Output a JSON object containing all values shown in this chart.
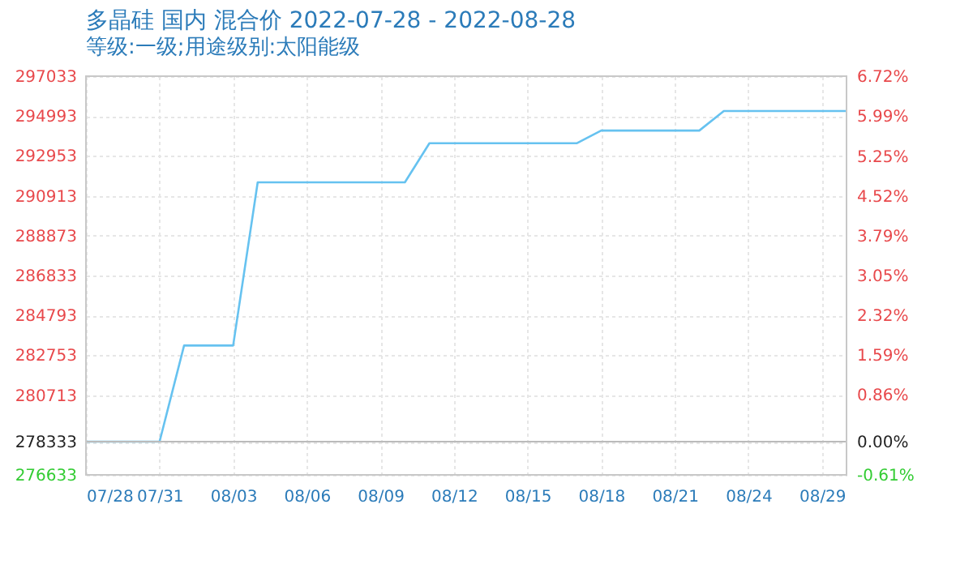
{
  "chart_data": {
    "type": "line",
    "title": "多晶硅 国内 混合价 2022-07-28 - 2022-08-28",
    "subtitle": "等级:一级;用途级别:太阳能级",
    "x": [
      "2022-07-28",
      "2022-07-31",
      "2022-08-01",
      "2022-08-03",
      "2022-08-04",
      "2022-08-10",
      "2022-08-11",
      "2022-08-17",
      "2022-08-18",
      "2022-08-22",
      "2022-08-23",
      "2022-08-28"
    ],
    "series": [
      {
        "color": "#66c2f0",
        "values": [
          278333,
          278333,
          283250,
          283250,
          291600,
          291600,
          293600,
          293600,
          294250,
          294250,
          295250,
          295250
        ]
      }
    ],
    "xlim": [
      "2022-07-28",
      "2022-08-28"
    ],
    "xticks": [
      {
        "value": "2022-07-28",
        "label": "07/28"
      },
      {
        "value": "2022-07-31",
        "label": "07/31"
      },
      {
        "value": "2022-08-03",
        "label": "08/03"
      },
      {
        "value": "2022-08-06",
        "label": "08/06"
      },
      {
        "value": "2022-08-09",
        "label": "08/09"
      },
      {
        "value": "2022-08-12",
        "label": "08/12"
      },
      {
        "value": "2022-08-15",
        "label": "08/15"
      },
      {
        "value": "2022-08-18",
        "label": "08/18"
      },
      {
        "value": "2022-08-21",
        "label": "08/21"
      },
      {
        "value": "2022-08-24",
        "label": "08/24"
      },
      {
        "value": "2022-08-27",
        "label": "08/29"
      }
    ],
    "ylim": [
      276633,
      297033
    ],
    "yticks": [
      297033,
      294993,
      292953,
      290913,
      288873,
      286833,
      284793,
      282753,
      280713,
      278333,
      276633
    ],
    "y2lim": [
      -0.61,
      6.72
    ],
    "y2ticks": [
      {
        "value": 6.72,
        "label": "6.72%"
      },
      {
        "value": 5.99,
        "label": "5.99%"
      },
      {
        "value": 5.25,
        "label": "5.25%"
      },
      {
        "value": 4.52,
        "label": "4.52%"
      },
      {
        "value": 3.79,
        "label": "3.79%"
      },
      {
        "value": 3.05,
        "label": "3.05%"
      },
      {
        "value": 2.32,
        "label": "2.32%"
      },
      {
        "value": 1.59,
        "label": "1.59%"
      },
      {
        "value": 0.86,
        "label": "0.86%"
      },
      {
        "value": 0.0,
        "label": "0.00%"
      },
      {
        "value": -0.61,
        "label": "-0.61%"
      }
    ],
    "ref_lines": [
      {
        "axis": "y",
        "value": 278333,
        "color": "#bbbbbb"
      }
    ],
    "grid": true,
    "marker": "none",
    "line_style": "solid"
  }
}
